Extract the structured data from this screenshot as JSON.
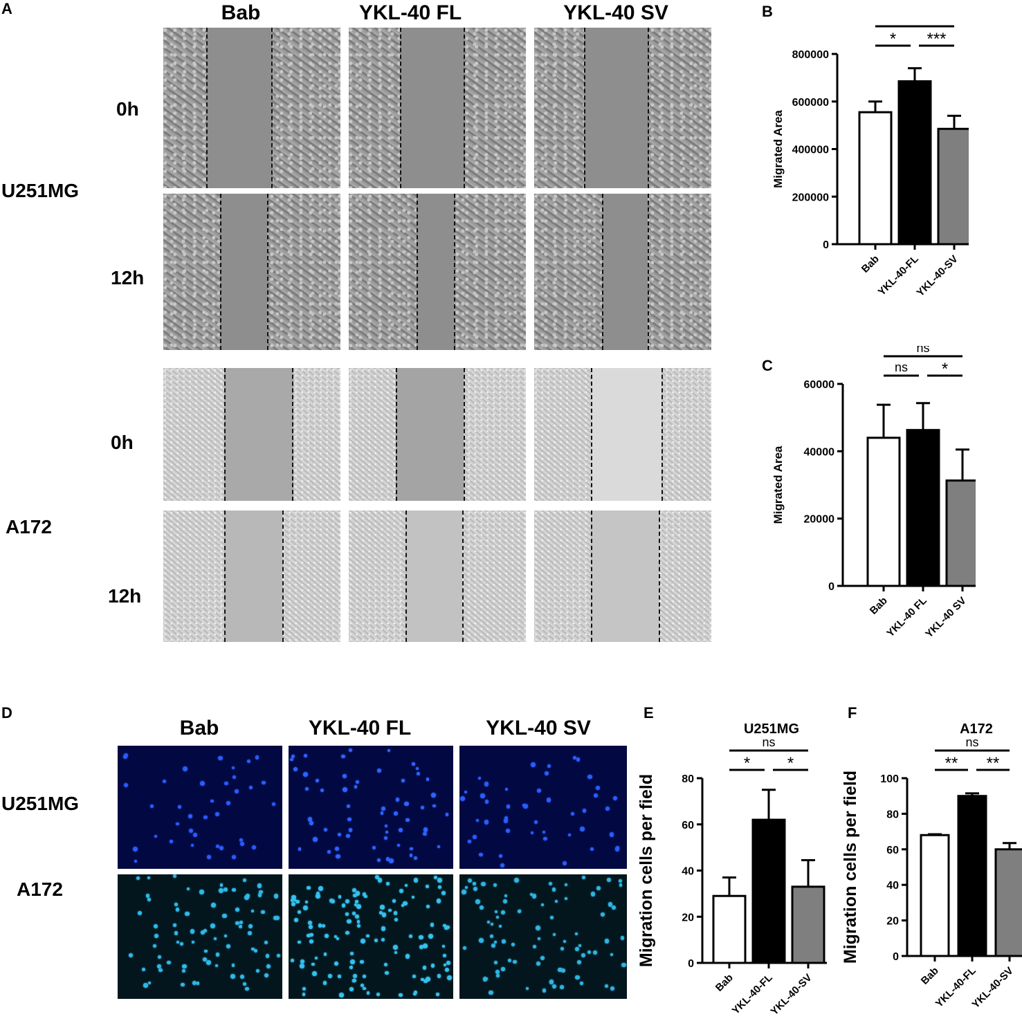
{
  "panels": {
    "A": "A",
    "B": "B",
    "C": "C",
    "D": "D",
    "E": "E",
    "F": "F"
  },
  "panelA": {
    "columns": [
      "Bab",
      "YKL-40 FL",
      "YKL-40 SV"
    ],
    "cell_lines": [
      "U251MG",
      "A172"
    ],
    "timepoints": [
      "0h",
      "12h",
      "0h",
      "12h"
    ]
  },
  "panelD": {
    "columns": [
      "Bab",
      "YKL-40 FL",
      "YKL-40 SV"
    ],
    "rows": [
      "U251MG",
      "A172"
    ]
  },
  "colors": {
    "bab": "#ffffff",
    "fl": "#000000",
    "sv": "#7f7f7f"
  },
  "chart_data": [
    {
      "panel": "B",
      "type": "bar",
      "title": "",
      "categories": [
        "Bab",
        "YKL-40-FL",
        "YKL-40-SV"
      ],
      "values": [
        555000,
        685000,
        485000
      ],
      "errors": [
        45000,
        55000,
        55000
      ],
      "ylabel": "Migrated Area",
      "ylim": [
        0,
        800000
      ],
      "yticks": [
        0,
        200000,
        400000,
        600000,
        800000
      ],
      "ytick_labels": [
        "0",
        "200000",
        "400000",
        "600000",
        "800000"
      ],
      "significance": [
        {
          "from": 0,
          "to": 2,
          "label": "*"
        },
        {
          "from": 0,
          "to": 1,
          "label": "*"
        },
        {
          "from": 1,
          "to": 2,
          "label": "***"
        }
      ]
    },
    {
      "panel": "C",
      "type": "bar",
      "title": "",
      "categories": [
        "Bab",
        "YKL-40 FL",
        "YKL-40 SV"
      ],
      "values": [
        44000,
        46300,
        31300
      ],
      "errors": [
        9800,
        8000,
        9200
      ],
      "ylabel": "Migrated Area",
      "ylim": [
        0,
        60000
      ],
      "yticks": [
        0,
        20000,
        40000,
        60000
      ],
      "ytick_labels": [
        "0",
        "20000",
        "40000",
        "60000"
      ],
      "significance": [
        {
          "from": 0,
          "to": 2,
          "label": "ns"
        },
        {
          "from": 0,
          "to": 1,
          "label": "ns"
        },
        {
          "from": 1,
          "to": 2,
          "label": "*"
        }
      ]
    },
    {
      "panel": "E",
      "type": "bar",
      "title": "U251MG",
      "categories": [
        "Bab",
        "YKL-40-FL",
        "YKL-40-SV"
      ],
      "values": [
        29,
        62,
        33
      ],
      "errors": [
        8,
        13,
        11.5
      ],
      "ylabel": "Migration cells per field",
      "ylim": [
        0,
        80
      ],
      "yticks": [
        0,
        20,
        40,
        60,
        80
      ],
      "ytick_labels": [
        "0",
        "20",
        "40",
        "60",
        "80"
      ],
      "significance": [
        {
          "from": 0,
          "to": 2,
          "label": "ns"
        },
        {
          "from": 0,
          "to": 1,
          "label": "*"
        },
        {
          "from": 1,
          "to": 2,
          "label": "*"
        }
      ]
    },
    {
      "panel": "F",
      "type": "bar",
      "title": "A172",
      "categories": [
        "Bab",
        "YKL-40-FL",
        "YKL-40-SV"
      ],
      "values": [
        68,
        90,
        60
      ],
      "errors": [
        0.5,
        1.5,
        3.5
      ],
      "ylabel": "Migration cells per field",
      "ylim": [
        0,
        100
      ],
      "yticks": [
        0,
        20,
        40,
        60,
        80,
        100
      ],
      "ytick_labels": [
        "0",
        "20",
        "40",
        "60",
        "80",
        "100"
      ],
      "significance": [
        {
          "from": 0,
          "to": 2,
          "label": "ns"
        },
        {
          "from": 0,
          "to": 1,
          "label": "**"
        },
        {
          "from": 1,
          "to": 2,
          "label": "**"
        }
      ]
    }
  ]
}
